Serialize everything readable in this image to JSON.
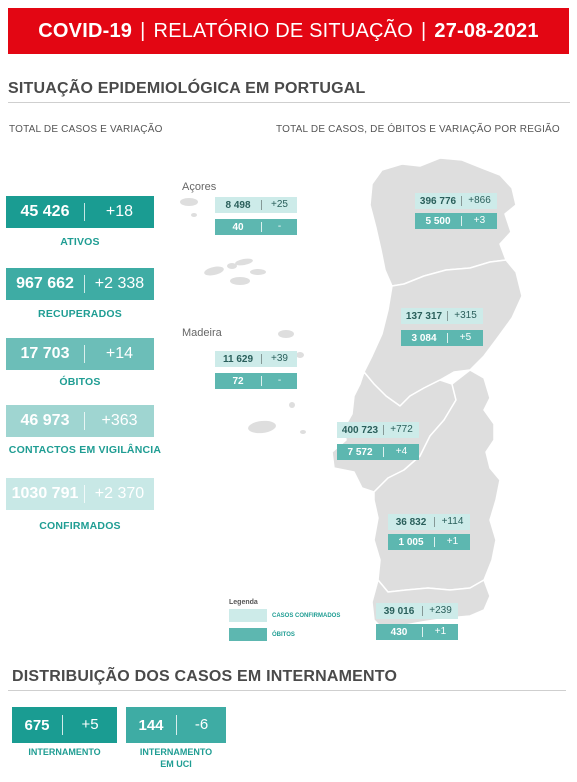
{
  "header": {
    "prefix": "COVID-19",
    "title": "RELATÓRIO DE SITUAÇÃO",
    "date": "27-08-2021"
  },
  "epi": {
    "title": "SITUAÇÃO EPIDEMIOLÓGICA EM PORTUGAL",
    "left_subtitle": "TOTAL DE CASOS E VARIAÇÃO",
    "right_subtitle": "TOTAL DE CASOS, DE ÓBITOS E VARIAÇÃO POR REGIÃO"
  },
  "stats": [
    {
      "value": "45 426",
      "delta": "+18",
      "label": "ATIVOS",
      "color": "#1a9c92"
    },
    {
      "value": "967 662",
      "delta": "+2 338",
      "label": "RECUPERADOS",
      "color": "#3eaca4"
    },
    {
      "value": "17 703",
      "delta": "+14",
      "label": "ÓBITOS",
      "color": "#6cbeb8"
    },
    {
      "value": "46 973",
      "delta": "+363",
      "label": "CONTACTOS EM VIGILÂNCIA",
      "color": "#9fd5d1"
    },
    {
      "value": "1030 791",
      "delta": "+2 370",
      "label": "CONFIRMADOS",
      "color": "#c8e8e6"
    }
  ],
  "islands": {
    "acores": "Açores",
    "madeira": "Madeira"
  },
  "regions": [
    {
      "id": "acores",
      "cases": "8 498",
      "cases_delta": "+25",
      "deaths": "40",
      "deaths_delta": "-"
    },
    {
      "id": "madeira",
      "cases": "11 629",
      "cases_delta": "+39",
      "deaths": "72",
      "deaths_delta": "-"
    },
    {
      "id": "norte",
      "cases": "396 776",
      "cases_delta": "+866",
      "deaths": "5 500",
      "deaths_delta": "+3"
    },
    {
      "id": "centro",
      "cases": "137 317",
      "cases_delta": "+315",
      "deaths": "3 084",
      "deaths_delta": "+5"
    },
    {
      "id": "lvt",
      "cases": "400 723",
      "cases_delta": "+772",
      "deaths": "7 572",
      "deaths_delta": "+4"
    },
    {
      "id": "alentejo",
      "cases": "36 832",
      "cases_delta": "+114",
      "deaths": "1 005",
      "deaths_delta": "+1"
    },
    {
      "id": "algarve",
      "cases": "39 016",
      "cases_delta": "+239",
      "deaths": "430",
      "deaths_delta": "+1"
    }
  ],
  "legend": {
    "title": "Legenda",
    "cases": "CASOS CONFIRMADOS",
    "deaths": "ÓBITOS"
  },
  "hospital": {
    "title": "DISTRIBUIÇÃO DOS CASOS EM INTERNAMENTO",
    "items": [
      {
        "value": "675",
        "delta": "+5",
        "label_line1": "INTERNAMENTO",
        "label_line2": ""
      },
      {
        "value": "144",
        "delta": "-6",
        "label_line1": "INTERNAMENTO",
        "label_line2": "EM UCI"
      }
    ]
  }
}
